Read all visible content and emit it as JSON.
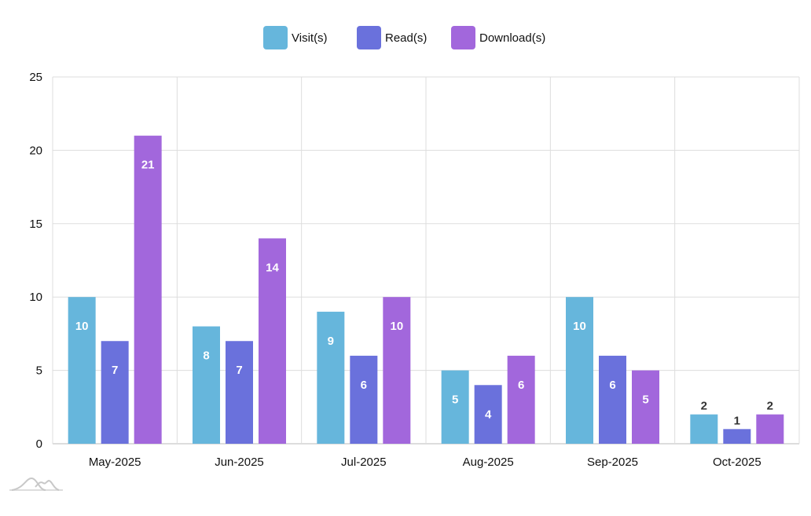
{
  "chart_data": {
    "type": "bar",
    "title": "",
    "xlabel": "",
    "ylabel": "",
    "ylim": [
      0,
      25
    ],
    "yticks": [
      "0",
      "5",
      "10",
      "15",
      "20",
      "25"
    ],
    "grid": true,
    "legend_position": "top-center",
    "categories": [
      "May-2025",
      "Jun-2025",
      "Jul-2025",
      "Aug-2025",
      "Sep-2025",
      "Oct-2025"
    ],
    "series": [
      {
        "name": "Visit(s)",
        "color": "#66b6dc",
        "values": [
          10,
          8,
          9,
          5,
          10,
          2
        ]
      },
      {
        "name": "Read(s)",
        "color": "#6a71dc",
        "values": [
          7,
          7,
          6,
          4,
          6,
          1
        ]
      },
      {
        "name": "Download(s)",
        "color": "#a267dc",
        "values": [
          21,
          14,
          10,
          6,
          5,
          2
        ]
      }
    ]
  }
}
